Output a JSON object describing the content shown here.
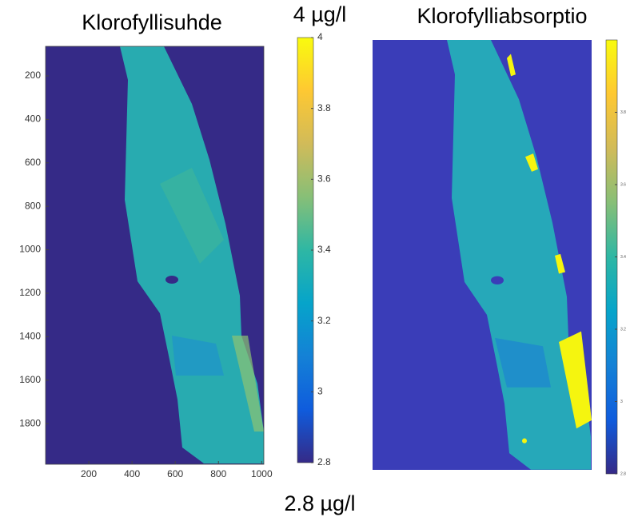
{
  "chart_data": [
    {
      "type": "heatmap",
      "title": "Klorofyllisuhde",
      "xlim": [
        0,
        1010
      ],
      "ylim": [
        1987,
        64
      ],
      "xticks": [
        200,
        400,
        600,
        800,
        1000
      ],
      "yticks": [
        200,
        400,
        600,
        800,
        1000,
        1200,
        1400,
        1600,
        1800
      ],
      "clim": [
        2.8,
        4
      ],
      "cticks": [
        2.8,
        3,
        3.2,
        3.4,
        3.6,
        3.8,
        4
      ],
      "colormap": [
        "#352a87",
        "#0f5cdd",
        "#1481d6",
        "#06a4ca",
        "#2eb7a4",
        "#87bf77",
        "#d1bb59",
        "#fec832",
        "#f9fb0e"
      ],
      "annotations": [
        "4 µg/l",
        "2.8 µg/l"
      ]
    },
    {
      "type": "heatmap",
      "title": "Klorofylliabsorptio",
      "clim": [
        2.8,
        4
      ],
      "cticks": [
        2.8,
        3,
        3.2,
        3.4,
        3.6,
        3.8
      ],
      "colormap": [
        "#352a87",
        "#0f5cdd",
        "#1481d6",
        "#06a4ca",
        "#2eb7a4",
        "#87bf77",
        "#d1bb59",
        "#fec832",
        "#f9fb0e"
      ]
    }
  ]
}
